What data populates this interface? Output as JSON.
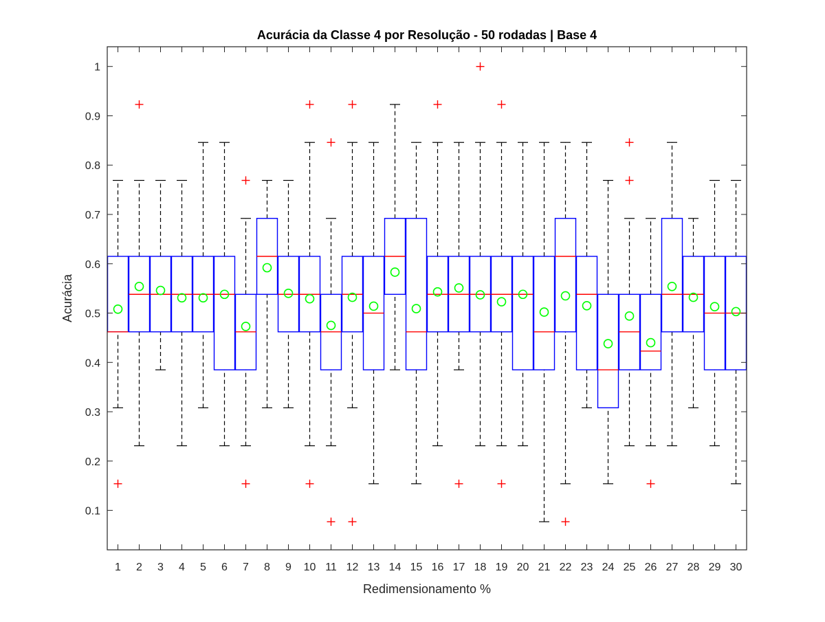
{
  "chart_data": {
    "type": "boxplot",
    "title": "Acurácia da Classe 4 por Resolução - 50 rodadas | Base 4",
    "xlabel": "Redimensionamento %",
    "ylabel": "Acurácia",
    "ylim": [
      0.02,
      1.04
    ],
    "yticks": [
      0.1,
      0.2,
      0.3,
      0.4,
      0.5,
      0.6,
      0.7,
      0.8,
      0.9,
      1
    ],
    "ytick_labels": [
      "0.1",
      "0.2",
      "0.3",
      "0.4",
      "0.5",
      "0.6",
      "0.7",
      "0.8",
      "0.9",
      "1"
    ],
    "categories": [
      "1",
      "2",
      "3",
      "4",
      "5",
      "6",
      "7",
      "8",
      "9",
      "10",
      "11",
      "12",
      "13",
      "14",
      "15",
      "16",
      "17",
      "18",
      "19",
      "20",
      "21",
      "22",
      "23",
      "24",
      "25",
      "26",
      "27",
      "28",
      "29",
      "30"
    ],
    "grid": false,
    "colors": {
      "box": "#0000ff",
      "median": "#ff0000",
      "whisker": "#000000",
      "outlier": "#ff0000",
      "mean": "#00ff00"
    },
    "boxes": [
      {
        "category": "1",
        "lower_whisker": 0.308,
        "q1": 0.462,
        "median": 0.462,
        "q3": 0.615,
        "upper_whisker": 0.769,
        "mean": 0.508,
        "outliers": [
          0.154
        ]
      },
      {
        "category": "2",
        "lower_whisker": 0.231,
        "q1": 0.462,
        "median": 0.538,
        "q3": 0.615,
        "upper_whisker": 0.769,
        "mean": 0.554,
        "outliers": [
          0.923
        ]
      },
      {
        "category": "3",
        "lower_whisker": 0.385,
        "q1": 0.462,
        "median": 0.538,
        "q3": 0.615,
        "upper_whisker": 0.769,
        "mean": 0.546,
        "outliers": []
      },
      {
        "category": "4",
        "lower_whisker": 0.231,
        "q1": 0.462,
        "median": 0.538,
        "q3": 0.615,
        "upper_whisker": 0.769,
        "mean": 0.531,
        "outliers": []
      },
      {
        "category": "5",
        "lower_whisker": 0.308,
        "q1": 0.462,
        "median": 0.538,
        "q3": 0.615,
        "upper_whisker": 0.846,
        "mean": 0.531,
        "outliers": []
      },
      {
        "category": "6",
        "lower_whisker": 0.231,
        "q1": 0.385,
        "median": 0.538,
        "q3": 0.615,
        "upper_whisker": 0.846,
        "mean": 0.538,
        "outliers": []
      },
      {
        "category": "7",
        "lower_whisker": 0.231,
        "q1": 0.385,
        "median": 0.462,
        "q3": 0.538,
        "upper_whisker": 0.692,
        "mean": 0.473,
        "outliers": [
          0.154,
          0.769
        ]
      },
      {
        "category": "8",
        "lower_whisker": 0.308,
        "q1": 0.538,
        "median": 0.615,
        "q3": 0.692,
        "upper_whisker": 0.769,
        "mean": 0.592,
        "outliers": []
      },
      {
        "category": "9",
        "lower_whisker": 0.308,
        "q1": 0.462,
        "median": 0.538,
        "q3": 0.615,
        "upper_whisker": 0.769,
        "mean": 0.54,
        "outliers": []
      },
      {
        "category": "10",
        "lower_whisker": 0.231,
        "q1": 0.462,
        "median": 0.538,
        "q3": 0.615,
        "upper_whisker": 0.846,
        "mean": 0.529,
        "outliers": [
          0.154,
          0.923
        ]
      },
      {
        "category": "11",
        "lower_whisker": 0.231,
        "q1": 0.385,
        "median": 0.462,
        "q3": 0.538,
        "upper_whisker": 0.692,
        "mean": 0.475,
        "outliers": [
          0.077,
          0.846
        ]
      },
      {
        "category": "12",
        "lower_whisker": 0.308,
        "q1": 0.462,
        "median": 0.538,
        "q3": 0.615,
        "upper_whisker": 0.846,
        "mean": 0.532,
        "outliers": [
          0.077,
          0.923
        ]
      },
      {
        "category": "13",
        "lower_whisker": 0.154,
        "q1": 0.385,
        "median": 0.5,
        "q3": 0.615,
        "upper_whisker": 0.846,
        "mean": 0.514,
        "outliers": []
      },
      {
        "category": "14",
        "lower_whisker": 0.385,
        "q1": 0.538,
        "median": 0.615,
        "q3": 0.692,
        "upper_whisker": 0.923,
        "mean": 0.583,
        "outliers": []
      },
      {
        "category": "15",
        "lower_whisker": 0.154,
        "q1": 0.385,
        "median": 0.462,
        "q3": 0.692,
        "upper_whisker": 0.846,
        "mean": 0.509,
        "outliers": []
      },
      {
        "category": "16",
        "lower_whisker": 0.231,
        "q1": 0.462,
        "median": 0.538,
        "q3": 0.615,
        "upper_whisker": 0.846,
        "mean": 0.543,
        "outliers": [
          0.923
        ]
      },
      {
        "category": "17",
        "lower_whisker": 0.385,
        "q1": 0.462,
        "median": 0.538,
        "q3": 0.615,
        "upper_whisker": 0.846,
        "mean": 0.551,
        "outliers": [
          0.154
        ]
      },
      {
        "category": "18",
        "lower_whisker": 0.231,
        "q1": 0.462,
        "median": 0.538,
        "q3": 0.615,
        "upper_whisker": 0.846,
        "mean": 0.537,
        "outliers": [
          1.0
        ]
      },
      {
        "category": "19",
        "lower_whisker": 0.231,
        "q1": 0.462,
        "median": 0.538,
        "q3": 0.615,
        "upper_whisker": 0.846,
        "mean": 0.523,
        "outliers": [
          0.154,
          0.923
        ]
      },
      {
        "category": "20",
        "lower_whisker": 0.231,
        "q1": 0.385,
        "median": 0.538,
        "q3": 0.615,
        "upper_whisker": 0.846,
        "mean": 0.538,
        "outliers": []
      },
      {
        "category": "21",
        "lower_whisker": 0.077,
        "q1": 0.385,
        "median": 0.462,
        "q3": 0.615,
        "upper_whisker": 0.846,
        "mean": 0.502,
        "outliers": []
      },
      {
        "category": "22",
        "lower_whisker": 0.154,
        "q1": 0.462,
        "median": 0.615,
        "q3": 0.692,
        "upper_whisker": 0.846,
        "mean": 0.535,
        "outliers": [
          0.077
        ]
      },
      {
        "category": "23",
        "lower_whisker": 0.308,
        "q1": 0.385,
        "median": 0.538,
        "q3": 0.615,
        "upper_whisker": 0.846,
        "mean": 0.515,
        "outliers": []
      },
      {
        "category": "24",
        "lower_whisker": 0.154,
        "q1": 0.308,
        "median": 0.385,
        "q3": 0.538,
        "upper_whisker": 0.769,
        "mean": 0.438,
        "outliers": []
      },
      {
        "category": "25",
        "lower_whisker": 0.231,
        "q1": 0.385,
        "median": 0.462,
        "q3": 0.538,
        "upper_whisker": 0.692,
        "mean": 0.494,
        "outliers": [
          0.769,
          0.846
        ]
      },
      {
        "category": "26",
        "lower_whisker": 0.231,
        "q1": 0.385,
        "median": 0.423,
        "q3": 0.538,
        "upper_whisker": 0.692,
        "mean": 0.44,
        "outliers": [
          0.154
        ]
      },
      {
        "category": "27",
        "lower_whisker": 0.231,
        "q1": 0.462,
        "median": 0.538,
        "q3": 0.692,
        "upper_whisker": 0.846,
        "mean": 0.554,
        "outliers": []
      },
      {
        "category": "28",
        "lower_whisker": 0.308,
        "q1": 0.462,
        "median": 0.538,
        "q3": 0.615,
        "upper_whisker": 0.692,
        "mean": 0.532,
        "outliers": []
      },
      {
        "category": "29",
        "lower_whisker": 0.231,
        "q1": 0.385,
        "median": 0.5,
        "q3": 0.615,
        "upper_whisker": 0.769,
        "mean": 0.513,
        "outliers": []
      },
      {
        "category": "30",
        "lower_whisker": 0.154,
        "q1": 0.385,
        "median": 0.5,
        "q3": 0.615,
        "upper_whisker": 0.769,
        "mean": 0.503,
        "outliers": []
      }
    ]
  }
}
